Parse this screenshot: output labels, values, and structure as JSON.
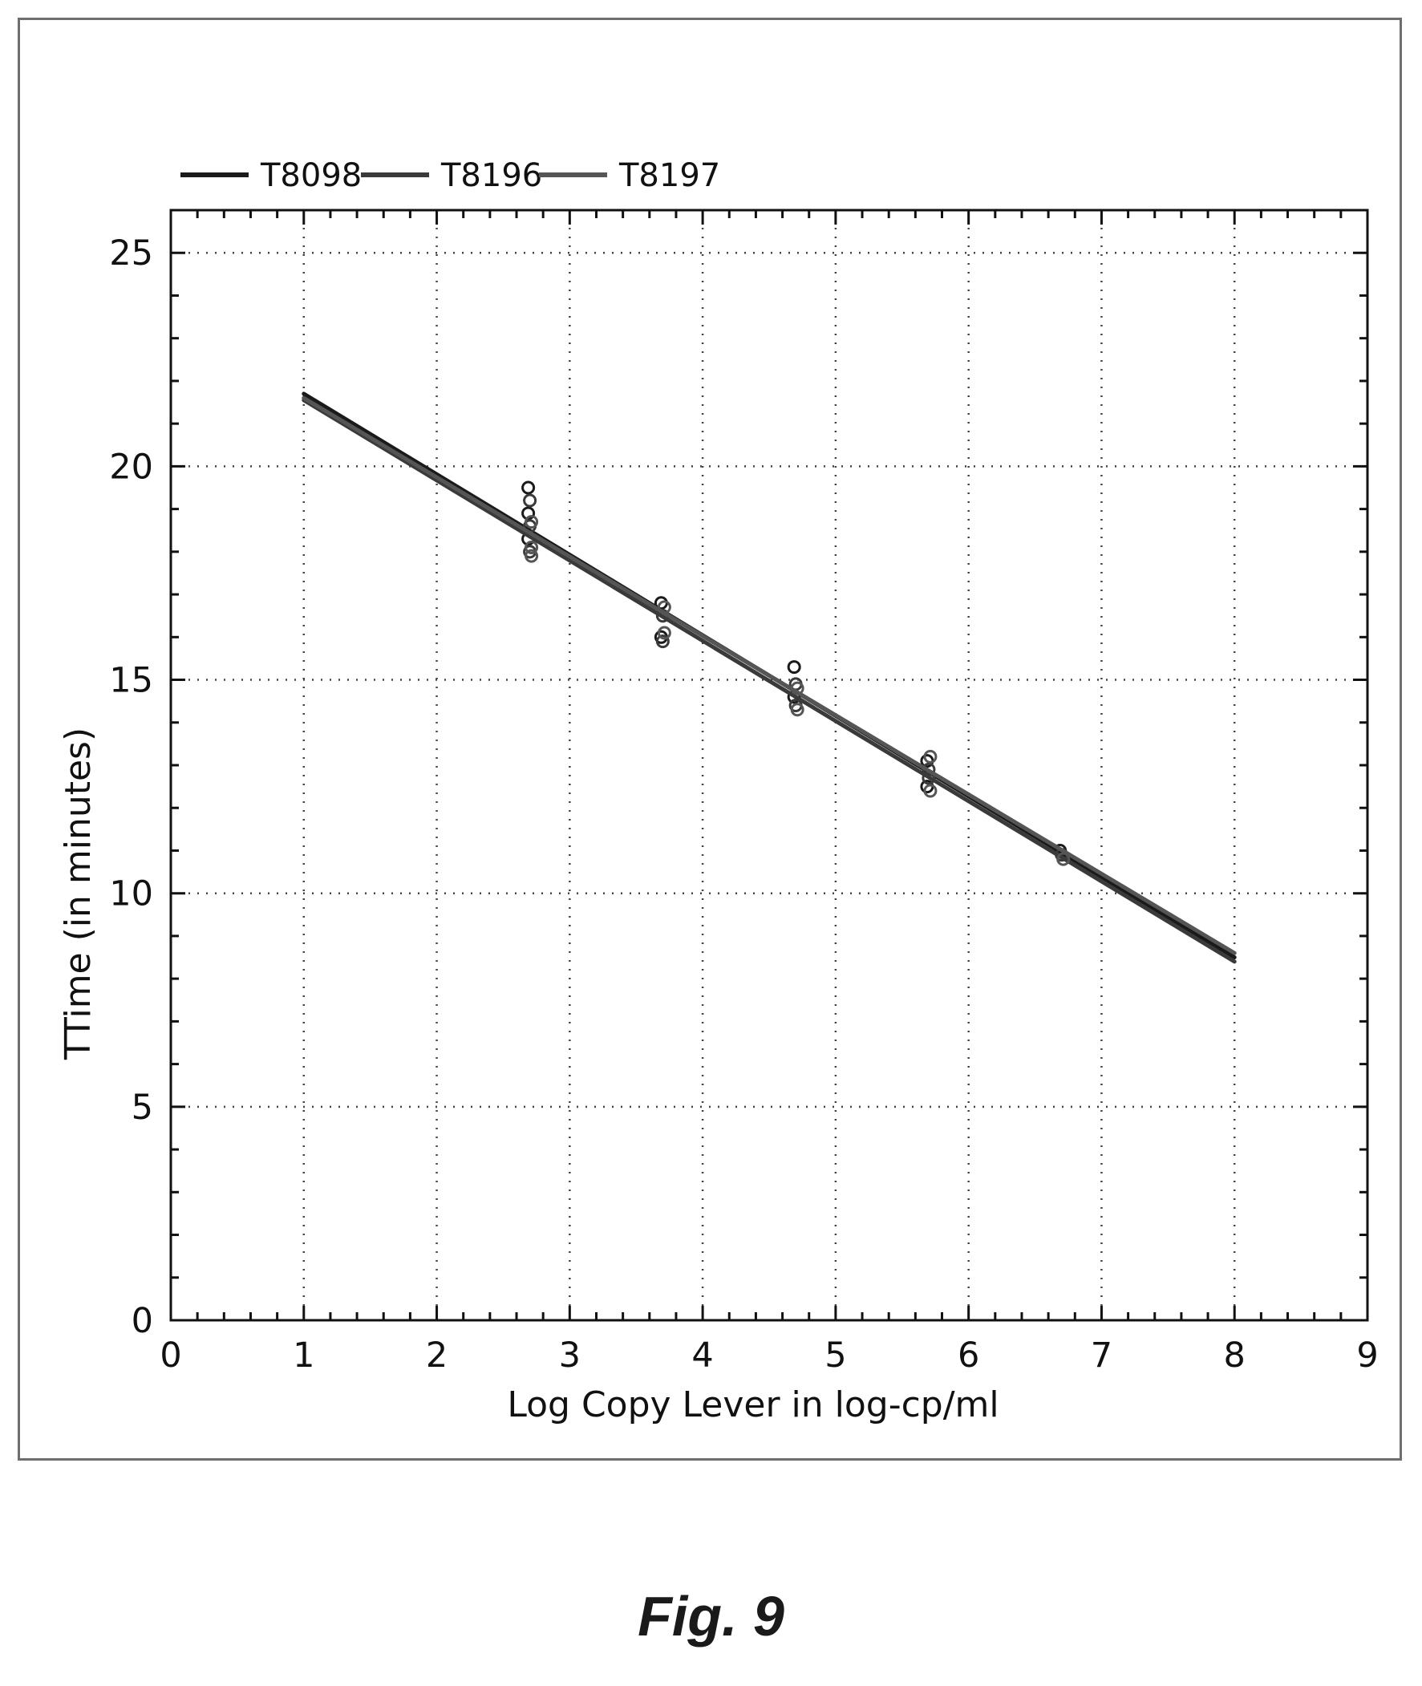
{
  "figure_caption": "Fig. 9",
  "chart_data": {
    "type": "scatter",
    "title": "",
    "xlabel": "Log Copy Lever in log-cp/ml",
    "ylabel": "TTime (in minutes)",
    "xlim": [
      0,
      9
    ],
    "ylim": [
      0,
      26
    ],
    "x_ticks": [
      0,
      1,
      2,
      3,
      4,
      5,
      6,
      7,
      8,
      9
    ],
    "y_ticks": [
      0,
      5,
      10,
      15,
      20,
      25
    ],
    "grid": "dotted",
    "legend_position": "top-left",
    "series": [
      {
        "name": "T8098",
        "color": "#1a1a1a",
        "line": [
          [
            1,
            21.7
          ],
          [
            8,
            8.5
          ]
        ],
        "points": [
          [
            2.7,
            19.5
          ],
          [
            2.7,
            18.9
          ],
          [
            2.7,
            18.3
          ],
          [
            3.7,
            16.8
          ],
          [
            3.7,
            16.0
          ],
          [
            4.7,
            15.3
          ],
          [
            4.7,
            14.6
          ],
          [
            5.7,
            13.1
          ],
          [
            5.7,
            12.5
          ],
          [
            6.7,
            11.0
          ]
        ]
      },
      {
        "name": "T8196",
        "color": "#3a3a3a",
        "line": [
          [
            1,
            21.55
          ],
          [
            8,
            8.4
          ]
        ],
        "points": [
          [
            2.7,
            19.2
          ],
          [
            2.7,
            18.6
          ],
          [
            2.7,
            18.0
          ],
          [
            3.7,
            16.5
          ],
          [
            3.7,
            15.9
          ],
          [
            4.7,
            14.9
          ],
          [
            4.7,
            14.4
          ],
          [
            5.7,
            12.9
          ],
          [
            5.7,
            12.7
          ],
          [
            6.7,
            10.9
          ]
        ]
      },
      {
        "name": "T8197",
        "color": "#555555",
        "line": [
          [
            1,
            21.6
          ],
          [
            8,
            8.6
          ]
        ],
        "points": [
          [
            2.7,
            18.7
          ],
          [
            2.7,
            18.1
          ],
          [
            2.7,
            17.9
          ],
          [
            3.7,
            16.7
          ],
          [
            3.7,
            16.1
          ],
          [
            4.7,
            14.8
          ],
          [
            4.7,
            14.3
          ],
          [
            5.7,
            13.2
          ],
          [
            5.7,
            12.4
          ],
          [
            6.7,
            10.8
          ]
        ]
      }
    ]
  }
}
